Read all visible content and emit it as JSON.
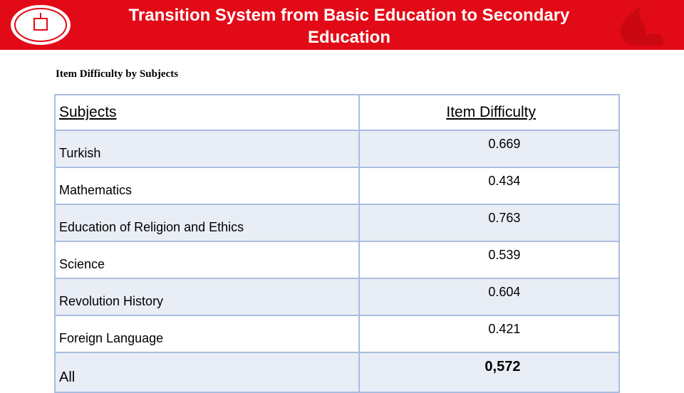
{
  "header": {
    "title": "Transition System from Basic Education to Secondary Education"
  },
  "subtitle": "Item Difficulty by Subjects",
  "table": {
    "columns": [
      "Subjects",
      "Item Difficulty"
    ],
    "rows": [
      [
        "Turkish",
        "0.669"
      ],
      [
        "Mathematics",
        "0.434"
      ],
      [
        "Education of Religion and Ethics",
        "0.763"
      ],
      [
        "Science",
        "0.539"
      ],
      [
        "Revolution History",
        "0.604"
      ],
      [
        "Foreign Language",
        "0.421"
      ],
      [
        "All",
        "0,572"
      ]
    ]
  }
}
